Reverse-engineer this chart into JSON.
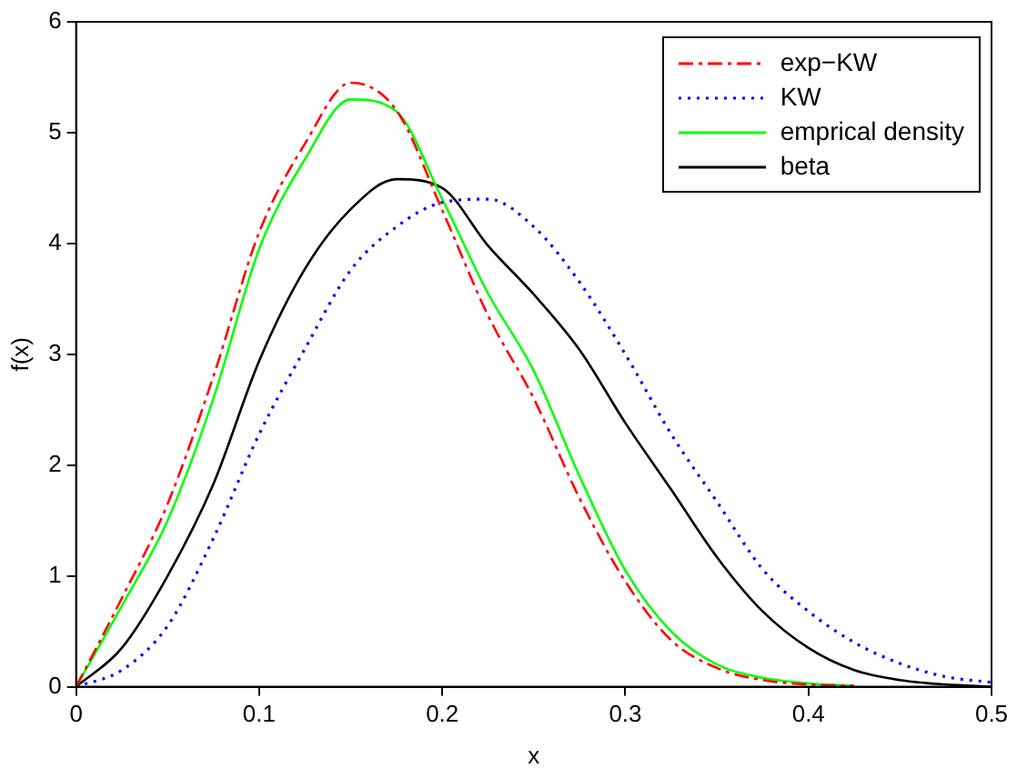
{
  "chart_data": {
    "type": "line",
    "xlabel": "x",
    "ylabel": "f(x)",
    "x": [
      0,
      0.025,
      0.05,
      0.075,
      0.1,
      0.125,
      0.15,
      0.175,
      0.2,
      0.225,
      0.25,
      0.275,
      0.3,
      0.325,
      0.35,
      0.375,
      0.4,
      0.425,
      0.45,
      0.475,
      0.5
    ],
    "series": [
      {
        "name": "exp−KW",
        "color": "#ff0000",
        "line_style": "dashed",
        "values": [
          0,
          0.8,
          1.65,
          2.8,
          4.1,
          4.9,
          5.45,
          5.2,
          4.3,
          3.35,
          2.6,
          1.7,
          0.95,
          0.42,
          0.17,
          0.06,
          0.02,
          0.01,
          null,
          null,
          null
        ]
      },
      {
        "name": "KW",
        "color": "#0000ff",
        "line_style": "dotted",
        "values": [
          0,
          0.15,
          0.55,
          1.34,
          2.28,
          3.05,
          3.76,
          4.15,
          4.37,
          4.4,
          4.15,
          3.65,
          3.0,
          2.28,
          1.67,
          1.06,
          0.68,
          0.4,
          0.21,
          0.09,
          0.04
        ]
      },
      {
        "name": "emprical density",
        "color": "#00ff00",
        "line_style": "solid",
        "values": [
          0,
          0.73,
          1.5,
          2.6,
          3.95,
          4.76,
          5.3,
          5.19,
          4.4,
          3.55,
          2.85,
          1.9,
          1.05,
          0.5,
          0.2,
          0.08,
          0.03,
          0.01,
          null,
          null,
          null
        ]
      },
      {
        "name": "beta",
        "color": "#000000",
        "line_style": "solid",
        "values": [
          0,
          0.35,
          1.0,
          1.83,
          2.94,
          3.77,
          4.31,
          4.58,
          4.5,
          3.98,
          3.54,
          3.04,
          2.38,
          1.78,
          1.17,
          0.68,
          0.35,
          0.15,
          0.06,
          0.02,
          0
        ]
      }
    ],
    "xlim": [
      0,
      0.5
    ],
    "xticks": [
      0,
      0.1,
      0.2,
      0.3,
      0.4,
      0.5
    ],
    "ylim": [
      0,
      6
    ],
    "yticks": [
      0,
      1,
      2,
      3,
      4,
      5,
      6
    ],
    "grid": false,
    "legend": "top right",
    "marker": "none"
  }
}
